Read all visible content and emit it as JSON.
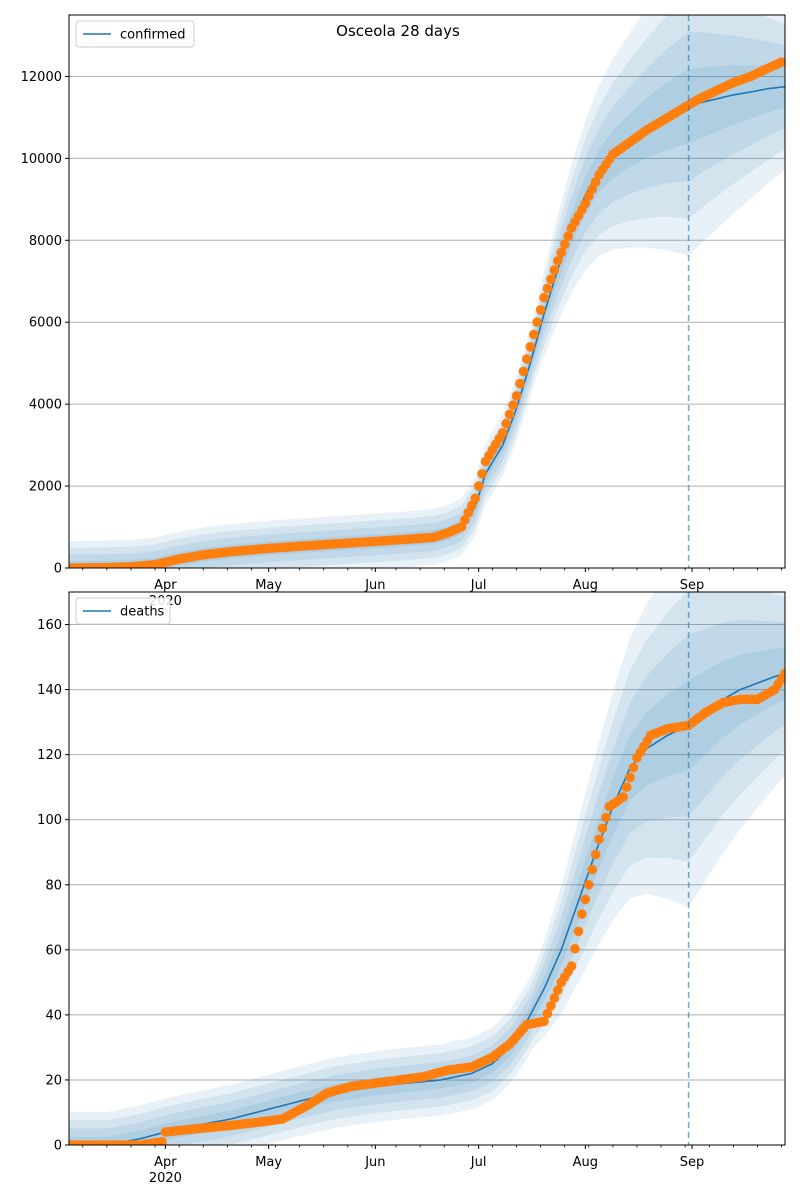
{
  "title": "Osceola 28 days",
  "colors": {
    "model": "#1f77b4",
    "observed": "#ff7f0e",
    "band": "#1f77b4",
    "grid": "#b0b0b0",
    "vline": "#1f77b4"
  },
  "chart_data": [
    {
      "type": "line",
      "panel": "confirmed",
      "legend": [
        "confirmed"
      ],
      "legend_position": "top-left",
      "grid": "y",
      "xlim": [
        "2020-03-04",
        "2020-09-28"
      ],
      "ylim": [
        0,
        13500
      ],
      "x_ticks": [
        {
          "date": "2020-04-01",
          "label": "Apr",
          "sub": "2020"
        },
        {
          "date": "2020-05-01",
          "label": "May"
        },
        {
          "date": "2020-06-01",
          "label": "Jun"
        },
        {
          "date": "2020-07-01",
          "label": "Jul"
        },
        {
          "date": "2020-08-01",
          "label": "Aug"
        },
        {
          "date": "2020-09-01",
          "label": "Sep"
        }
      ],
      "y_ticks": [
        0,
        2000,
        4000,
        6000,
        8000,
        10000,
        12000
      ],
      "forecast_start": "2020-08-31",
      "observed": {
        "x": [
          "2020-03-04",
          "2020-03-15",
          "2020-03-22",
          "2020-03-29",
          "2020-04-05",
          "2020-04-12",
          "2020-04-20",
          "2020-05-01",
          "2020-05-15",
          "2020-06-01",
          "2020-06-10",
          "2020-06-18",
          "2020-06-22",
          "2020-06-26",
          "2020-06-30",
          "2020-07-03",
          "2020-07-08",
          "2020-07-12",
          "2020-07-16",
          "2020-07-20",
          "2020-07-24",
          "2020-07-28",
          "2020-08-01",
          "2020-08-05",
          "2020-08-09",
          "2020-08-14",
          "2020-08-19",
          "2020-08-24",
          "2020-08-29",
          "2020-09-03",
          "2020-09-08",
          "2020-09-13",
          "2020-09-18",
          "2020-09-23",
          "2020-09-27"
        ],
        "y": [
          0,
          10,
          30,
          80,
          220,
          320,
          400,
          480,
          560,
          650,
          700,
          750,
          860,
          1000,
          1700,
          2600,
          3300,
          4200,
          5400,
          6600,
          7500,
          8300,
          8900,
          9600,
          10100,
          10400,
          10700,
          10950,
          11200,
          11450,
          11650,
          11850,
          12000,
          12200,
          12350
        ]
      },
      "model": {
        "x": [
          "2020-03-04",
          "2020-03-15",
          "2020-03-22",
          "2020-03-29",
          "2020-04-05",
          "2020-04-12",
          "2020-04-20",
          "2020-05-01",
          "2020-05-15",
          "2020-06-01",
          "2020-06-10",
          "2020-06-18",
          "2020-06-22",
          "2020-06-26",
          "2020-06-30",
          "2020-07-03",
          "2020-07-08",
          "2020-07-12",
          "2020-07-16",
          "2020-07-20",
          "2020-07-24",
          "2020-07-28",
          "2020-08-01",
          "2020-08-05",
          "2020-08-09",
          "2020-08-14",
          "2020-08-19",
          "2020-08-24",
          "2020-08-29",
          "2020-09-03",
          "2020-09-08",
          "2020-09-13",
          "2020-09-18",
          "2020-09-23",
          "2020-09-28"
        ],
        "y": [
          0,
          10,
          30,
          80,
          220,
          320,
          400,
          480,
          560,
          650,
          700,
          760,
          850,
          1000,
          1500,
          2300,
          3000,
          3900,
          5000,
          6200,
          7300,
          8300,
          9100,
          9700,
          10100,
          10450,
          10750,
          11000,
          11200,
          11350,
          11450,
          11550,
          11620,
          11700,
          11750
        ],
        "band_spread_fraction": [
          0.04,
          0.08,
          0.12,
          0.16
        ]
      }
    },
    {
      "type": "line",
      "panel": "deaths",
      "legend": [
        "deaths"
      ],
      "legend_position": "top-left",
      "grid": "y",
      "xlim": [
        "2020-03-04",
        "2020-09-28"
      ],
      "ylim": [
        0,
        170
      ],
      "x_ticks": [
        {
          "date": "2020-04-01",
          "label": "Apr",
          "sub": "2020"
        },
        {
          "date": "2020-05-01",
          "label": "May"
        },
        {
          "date": "2020-06-01",
          "label": "Jun"
        },
        {
          "date": "2020-07-01",
          "label": "Jul"
        },
        {
          "date": "2020-08-01",
          "label": "Aug"
        },
        {
          "date": "2020-09-01",
          "label": "Sep"
        }
      ],
      "y_ticks": [
        0,
        20,
        40,
        60,
        80,
        100,
        120,
        140,
        160
      ],
      "forecast_start": "2020-08-31",
      "observed": {
        "x": [
          "2020-03-04",
          "2020-03-15",
          "2020-03-25",
          "2020-03-31",
          "2020-04-01",
          "2020-04-10",
          "2020-04-20",
          "2020-04-28",
          "2020-05-05",
          "2020-05-12",
          "2020-05-18",
          "2020-05-25",
          "2020-06-01",
          "2020-06-08",
          "2020-06-15",
          "2020-06-22",
          "2020-06-29",
          "2020-07-05",
          "2020-07-10",
          "2020-07-15",
          "2020-07-20",
          "2020-07-25",
          "2020-07-28",
          "2020-07-31",
          "2020-08-02",
          "2020-08-05",
          "2020-08-08",
          "2020-08-12",
          "2020-08-16",
          "2020-08-20",
          "2020-08-25",
          "2020-08-31",
          "2020-09-05",
          "2020-09-10",
          "2020-09-15",
          "2020-09-20",
          "2020-09-25",
          "2020-09-28"
        ],
        "y": [
          0,
          0,
          0,
          1,
          4,
          5,
          6,
          7,
          8,
          12,
          16,
          18,
          19,
          20,
          21,
          23,
          24,
          27,
          31,
          37,
          38,
          50,
          55,
          71,
          80,
          94,
          104,
          107,
          119,
          126,
          128,
          129,
          133,
          136,
          137,
          137,
          140,
          145
        ]
      },
      "model": {
        "x": [
          "2020-03-04",
          "2020-03-15",
          "2020-03-25",
          "2020-04-01",
          "2020-04-10",
          "2020-04-20",
          "2020-05-01",
          "2020-05-12",
          "2020-05-20",
          "2020-06-01",
          "2020-06-10",
          "2020-06-20",
          "2020-06-29",
          "2020-07-05",
          "2020-07-10",
          "2020-07-15",
          "2020-07-20",
          "2020-07-25",
          "2020-07-30",
          "2020-08-04",
          "2020-08-09",
          "2020-08-14",
          "2020-08-19",
          "2020-08-25",
          "2020-08-31",
          "2020-09-05",
          "2020-09-10",
          "2020-09-15",
          "2020-09-20",
          "2020-09-25",
          "2020-09-28"
        ],
        "y": [
          0,
          0,
          2,
          4,
          6,
          8,
          11,
          14,
          16,
          18,
          19,
          20,
          22,
          25,
          30,
          38,
          48,
          60,
          75,
          90,
          104,
          116,
          122,
          126,
          129,
          133,
          137,
          140,
          142,
          144,
          145
        ],
        "band_spread_fraction": [
          0.05,
          0.1,
          0.15,
          0.2
        ]
      }
    }
  ]
}
